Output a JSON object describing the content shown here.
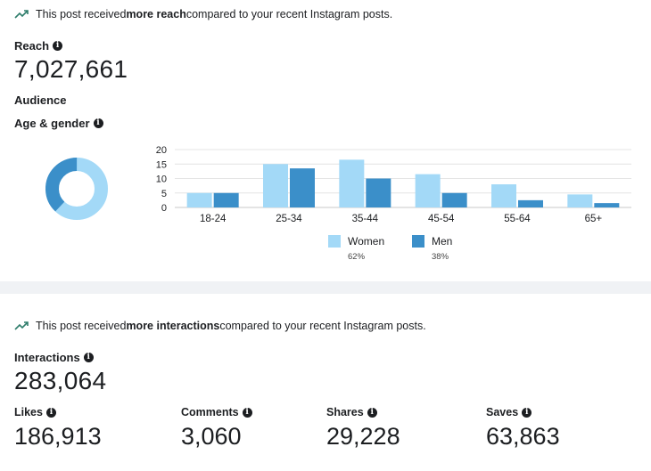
{
  "reach_card": {
    "banner_prefix": "This post received ",
    "banner_bold": "more reach",
    "banner_suffix": " compared to your recent Instagram posts.",
    "reach_label": "Reach",
    "reach_value": "7,027,661",
    "audience_label": "Audience",
    "age_gender_label": "Age & gender"
  },
  "donut": {
    "women_pct": 62,
    "men_pct": 38
  },
  "chart_data": {
    "type": "bar",
    "categories": [
      "18-24",
      "25-34",
      "35-44",
      "45-54",
      "55-64",
      "65+"
    ],
    "series": [
      {
        "name": "Women",
        "values": [
          5,
          15,
          16.5,
          11.5,
          8,
          4.5
        ],
        "color": "#a3d9f7"
      },
      {
        "name": "Men",
        "values": [
          5,
          13.5,
          10,
          5,
          2.5,
          1.5
        ],
        "color": "#3b8fc9"
      }
    ],
    "y_ticks": [
      "0",
      "5",
      "10",
      "15",
      "20"
    ],
    "ylim": [
      0,
      20
    ],
    "grid": true,
    "legend": "bottom"
  },
  "legend": {
    "women_label": "Women",
    "women_pct": "62%",
    "men_label": "Men",
    "men_pct": "38%"
  },
  "interactions_card": {
    "banner_prefix": "This post received ",
    "banner_bold": "more interactions",
    "banner_suffix": " compared to your recent Instagram posts.",
    "interactions_label": "Interactions",
    "interactions_value": "283,064",
    "metrics": [
      {
        "label": "Likes",
        "value": "186,913"
      },
      {
        "label": "Comments",
        "value": "3,060"
      },
      {
        "label": "Shares",
        "value": "29,228"
      },
      {
        "label": "Saves",
        "value": "63,863"
      }
    ]
  },
  "colors": {
    "women": "#a3d9f7",
    "men": "#3b8fc9",
    "trend_icon": "#2e7d6b"
  },
  "icons": {
    "trend": "trending-up-icon",
    "info": "info-icon"
  }
}
